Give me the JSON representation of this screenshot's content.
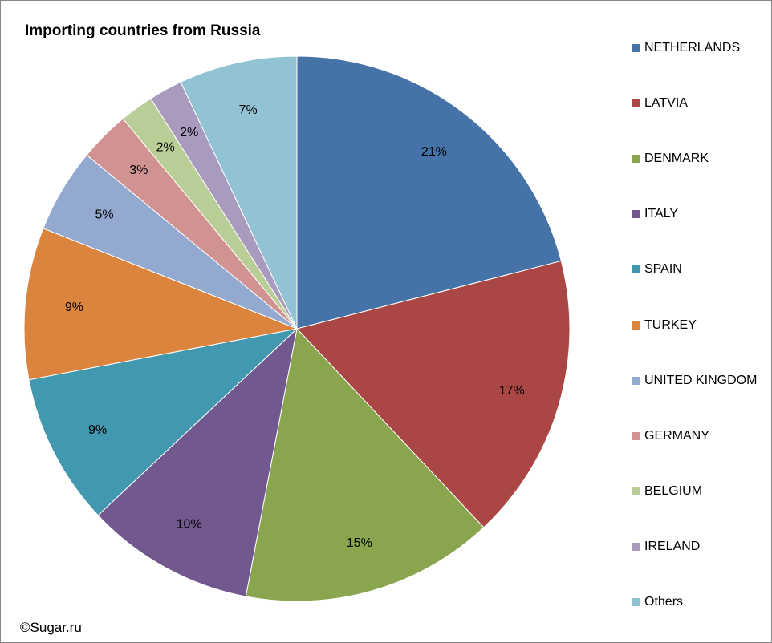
{
  "chart_data": {
    "type": "pie",
    "title": "Importing countries from Russia",
    "legend_position": "right",
    "slices": [
      {
        "label": "NETHERLANDS",
        "value": 21,
        "data_label": "21%",
        "color": "#4572A7"
      },
      {
        "label": "LATVIA",
        "value": 17,
        "data_label": "17%",
        "color": "#AA4643"
      },
      {
        "label": "DENMARK",
        "value": 15,
        "data_label": "15%",
        "color": "#89A54E"
      },
      {
        "label": "ITALY",
        "value": 10,
        "data_label": "10%",
        "color": "#71588F"
      },
      {
        "label": "SPAIN",
        "value": 9,
        "data_label": "9%",
        "color": "#4198AF"
      },
      {
        "label": "TURKEY",
        "value": 9,
        "data_label": "9%",
        "color": "#DB843D"
      },
      {
        "label": "UNITED KINGDOM",
        "value": 5,
        "data_label": "5%",
        "color": "#93A9CF"
      },
      {
        "label": "GERMANY",
        "value": 3,
        "data_label": "3%",
        "color": "#D19392"
      },
      {
        "label": "BELGIUM",
        "value": 2,
        "data_label": "2%",
        "color": "#B9CD96"
      },
      {
        "label": "IRELAND",
        "value": 2,
        "data_label": "2%",
        "color": "#A99BBD"
      },
      {
        "label": "Others",
        "value": 7,
        "data_label": "7%",
        "color": "#92C3D5"
      }
    ]
  },
  "footer": {
    "credit": "©Sugar.ru"
  }
}
